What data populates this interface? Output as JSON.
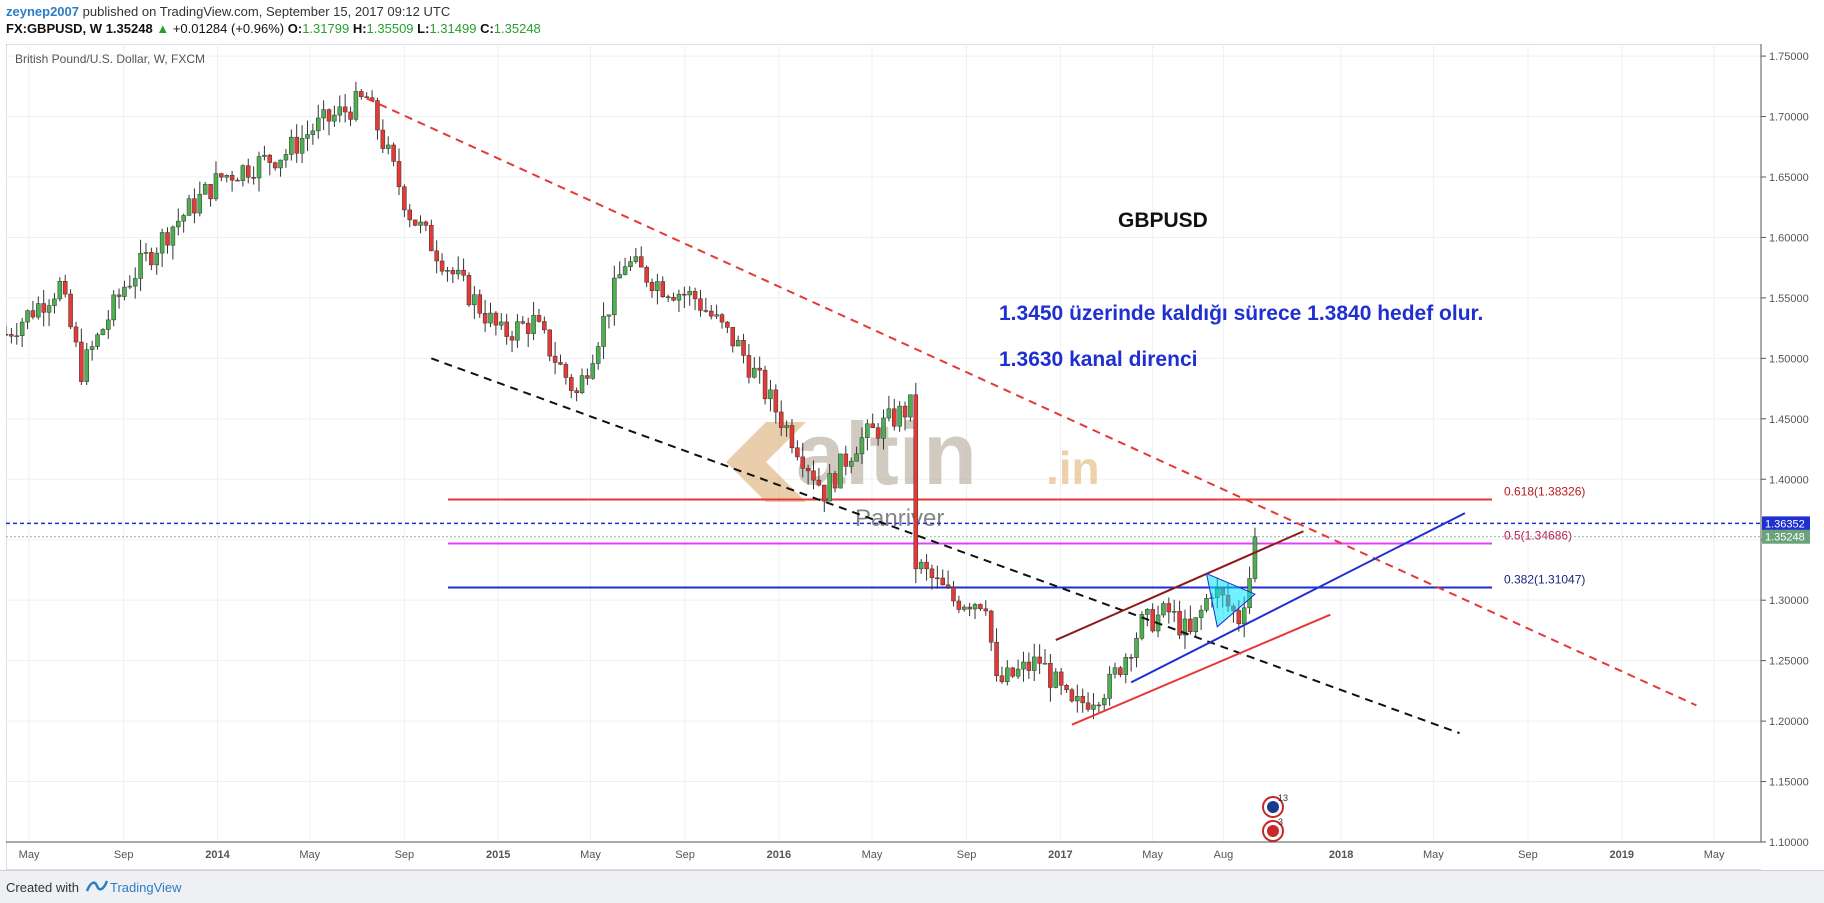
{
  "header": {
    "user": "zeynep2007",
    "published": "published on TradingView.com, September 15, 2017 09:12 UTC",
    "symbol": "FX:GBPUSD, W",
    "last": "1.35248",
    "change": "+0.01284 (+0.96%)",
    "o_label": "O:",
    "o": "1.31799",
    "h_label": "H:",
    "h": "1.35509",
    "l_label": "L:",
    "l": "1.31499",
    "c_label": "C:",
    "c": "1.35248"
  },
  "chart_data": {
    "type": "candlestick",
    "title": "British Pound/U.S. Dollar, W, FXCM",
    "ylim": [
      1.1,
      1.76
    ],
    "y_ticks": [
      "1.75000",
      "1.70000",
      "1.65000",
      "1.60000",
      "1.55000",
      "1.50000",
      "1.45000",
      "1.40000",
      "1.35000",
      "1.30000",
      "1.25000",
      "1.20000",
      "1.15000",
      "1.10000"
    ],
    "x_ticks": [
      "May",
      "Sep",
      "2014",
      "May",
      "Sep",
      "2015",
      "May",
      "Sep",
      "2016",
      "May",
      "Sep",
      "2017",
      "May",
      "Aug",
      "2018",
      "May",
      "Sep",
      "2019",
      "May"
    ],
    "x_range": [
      "2013-04-01",
      "2019-07-01"
    ],
    "price_key_points": [
      [
        "2013-04-01",
        1.52
      ],
      [
        "2013-06-10",
        1.56
      ],
      [
        "2013-07-08",
        1.49
      ],
      [
        "2013-09-02",
        1.56
      ],
      [
        "2013-11-04",
        1.61
      ],
      [
        "2014-01-06",
        1.65
      ],
      [
        "2014-03-31",
        1.67
      ],
      [
        "2014-05-05",
        1.69
      ],
      [
        "2014-07-14",
        1.715
      ],
      [
        "2014-09-08",
        1.62
      ],
      [
        "2014-11-03",
        1.57
      ],
      [
        "2015-01-05",
        1.52
      ],
      [
        "2015-02-16",
        1.53
      ],
      [
        "2015-04-13",
        1.47
      ],
      [
        "2015-06-15",
        1.58
      ],
      [
        "2015-08-03",
        1.56
      ],
      [
        "2015-09-14",
        1.55
      ],
      [
        "2015-11-09",
        1.51
      ],
      [
        "2016-01-04",
        1.45
      ],
      [
        "2016-02-29",
        1.39
      ],
      [
        "2016-04-11",
        1.43
      ],
      [
        "2016-06-20",
        1.46
      ],
      [
        "2016-06-27",
        1.33
      ],
      [
        "2016-08-15",
        1.3
      ],
      [
        "2016-09-26",
        1.3
      ],
      [
        "2016-10-10",
        1.23
      ],
      [
        "2016-12-05",
        1.25
      ],
      [
        "2017-01-16",
        1.21
      ],
      [
        "2017-03-06",
        1.23
      ],
      [
        "2017-04-17",
        1.28
      ],
      [
        "2017-05-22",
        1.29
      ],
      [
        "2017-06-19",
        1.27
      ],
      [
        "2017-07-17",
        1.31
      ],
      [
        "2017-08-21",
        1.285
      ],
      [
        "2017-09-04",
        1.32
      ],
      [
        "2017-09-11",
        1.35248
      ]
    ],
    "annotations": [
      {
        "text": "GBPUSD"
      },
      {
        "text": "1.3450 üzerinde kaldığı sürece 1.3840 hedef olur."
      },
      {
        "text": "1.3630  kanal direnci"
      }
    ],
    "fib_levels": [
      {
        "label": "0.618(1.38326)",
        "value": 1.38326,
        "color": "#e53935"
      },
      {
        "label": "0.5(1.34686)",
        "value": 1.34686,
        "color": "#e040fb"
      },
      {
        "label": "0.382(1.31047)",
        "value": 1.31047,
        "color": "#1f2fd1"
      }
    ],
    "price_labels": [
      {
        "text": "1.36352",
        "value": 1.36352,
        "color": "#1f2fd1"
      },
      {
        "text": "1.35248",
        "value": 1.35248,
        "color": "#6aa37a"
      }
    ],
    "trend_lines": [
      {
        "name": "red-dashed",
        "from": [
          "2014-07-14",
          1.715
        ],
        "to": [
          "2019-04-08",
          1.213
        ],
        "color": "#e53935",
        "dashed": true
      },
      {
        "name": "black-dashed",
        "from": [
          "2014-10-06",
          1.5
        ],
        "to": [
          "2018-06-04",
          1.19
        ],
        "color": "#111111",
        "dashed": true
      },
      {
        "name": "blue-channel",
        "from": [
          "2017-04-03",
          1.232
        ],
        "to": [
          "2018-06-11",
          1.372
        ],
        "color": "#1f2fd1",
        "dashed": false
      },
      {
        "name": "red-channel-lower",
        "from": [
          "2017-01-16",
          1.197
        ],
        "to": [
          "2017-12-18",
          1.288
        ],
        "color": "#e53935",
        "dashed": false
      },
      {
        "name": "darkred-channel-upper",
        "from": [
          "2016-12-26",
          1.267
        ],
        "to": [
          "2017-11-13",
          1.357
        ],
        "color": "#8b1a1a",
        "dashed": false
      }
    ],
    "watermark": {
      "brand": "altin",
      "brand_suffix": ".in",
      "sub": "Panriver"
    },
    "event_badges": [
      {
        "flag": "gb",
        "count": "13"
      },
      {
        "flag": "us",
        "count": "3"
      }
    ],
    "colors": {
      "up": "#4caf50",
      "down": "#e53935",
      "grid": "#eef0f3",
      "axis": "#555555",
      "highlight": "#00e5ff"
    }
  },
  "footer": {
    "created_with": "Created with",
    "brand": "TradingView"
  }
}
